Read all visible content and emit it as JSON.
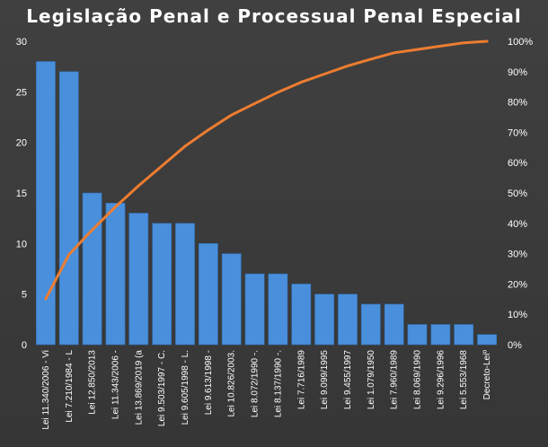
{
  "chart_data": {
    "type": "bar",
    "title": "Legislação  Penal  e Processual  Penal  Especial",
    "xlabel": "",
    "ylabel": "",
    "ylim": [
      0,
      30
    ],
    "y2lim": [
      0,
      1
    ],
    "y_ticks": [
      "0",
      "5",
      "10",
      "15",
      "20",
      "25",
      "30"
    ],
    "y2_ticks": [
      "0%",
      "10%",
      "20%",
      "30%",
      "40%",
      "50%",
      "60%",
      "70%",
      "80%",
      "90%",
      "100%"
    ],
    "grid": false,
    "legend": "none",
    "categories": [
      "Lei 11.340/2006 - Vi",
      "Lei 7.210/1984 - L",
      "Lei 12.850/2013",
      "Lei 11.343/2006 -",
      "Lei 13.869/2019 (a",
      "Lei 9.503/1997 - C.",
      "Lei 9.605/1998 - L.",
      "Lei 9.613/1998 -",
      "Lei 10.826/2003.",
      "Lei 8.072/1990 -.",
      "Lei 8.137/1990 -.",
      "Lei 7.716/1989",
      "Lei 9.099/1995",
      "Lei 9.455/1997",
      "Lei 1.079/1950",
      "Lei 7.960/1989",
      "Lei 8.069/1990",
      "Lei 9.296/1996",
      "Lei 5.553/1968",
      "Decreto-Leiº"
    ],
    "series": [
      {
        "type": "bar",
        "axis": "left",
        "values": [
          28,
          27,
          15,
          14,
          13,
          12,
          12,
          10,
          9,
          7,
          7,
          6,
          5,
          5,
          4,
          4,
          2,
          2,
          2,
          1
        ]
      },
      {
        "type": "line",
        "axis": "right",
        "values": [
          0.151,
          0.297,
          0.378,
          0.454,
          0.524,
          0.589,
          0.654,
          0.708,
          0.757,
          0.795,
          0.832,
          0.865,
          0.892,
          0.919,
          0.941,
          0.962,
          0.973,
          0.984,
          0.995,
          1.0
        ]
      }
    ],
    "colors": {
      "bar": "#4a8fdb",
      "line": "#ed7d31",
      "background": "#3b3b3b",
      "text": "#ffffff"
    }
  }
}
